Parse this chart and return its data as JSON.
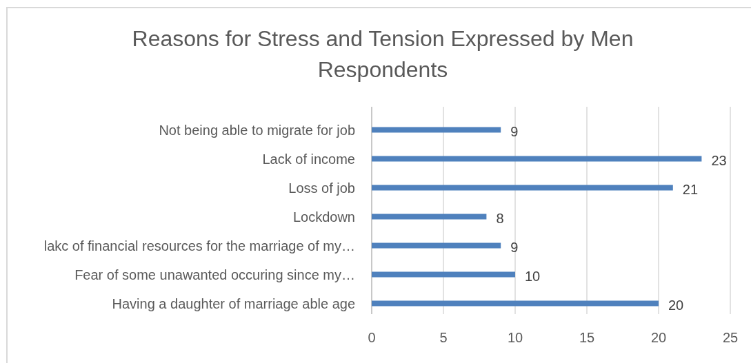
{
  "chart_data": {
    "type": "bar",
    "orientation": "horizontal",
    "title": "Reasons for Stress and Tension Expressed by Men Respondents",
    "categories": [
      "Not being able to migrate for job",
      "Lack of income",
      "Loss of job",
      "Lockdown",
      "lakc of financial resources for the marriage of my…",
      "Fear of some unawanted occuring since my…",
      "Having a daughter of marriage able age"
    ],
    "values": [
      9,
      23,
      21,
      8,
      9,
      10,
      20
    ],
    "color": "#4f81bd",
    "xlim": [
      0,
      25
    ],
    "xticks": [
      0,
      5,
      10,
      15,
      20,
      25
    ],
    "grid": "x",
    "data_labels": true
  }
}
